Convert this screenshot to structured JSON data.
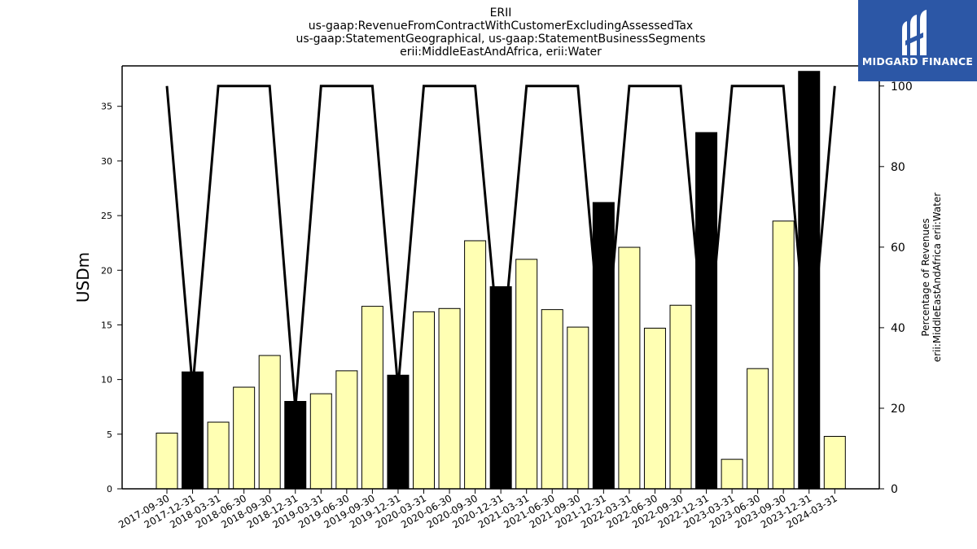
{
  "chart_data": {
    "type": "bar",
    "title_lines": [
      "ERII",
      "us-gaap:RevenueFromContractWithCustomerExcludingAssessedTax",
      "us-gaap:StatementGeographical, us-gaap:StatementBusinessSegments",
      "erii:MiddleEastAndAfrica, erii:Water"
    ],
    "ylabel": "USDm",
    "y2label_lines": [
      "Percentage of Revenues",
      "erii:MiddleEastAndAfrica erii:Water"
    ],
    "ylim": [
      0,
      38.7
    ],
    "y2lim": [
      0,
      105
    ],
    "yticks": [
      0,
      5,
      10,
      15,
      20,
      25,
      30,
      35
    ],
    "y2ticks": [
      0,
      20,
      40,
      60,
      80,
      100
    ],
    "categories": [
      "2017-09-30",
      "2017-12-31",
      "2018-03-31",
      "2018-06-30",
      "2018-09-30",
      "2018-12-31",
      "2019-03-31",
      "2019-06-30",
      "2019-09-30",
      "2019-12-31",
      "2020-03-31",
      "2020-06-30",
      "2020-09-30",
      "2020-12-31",
      "2021-03-31",
      "2021-06-30",
      "2021-09-30",
      "2021-12-31",
      "2022-03-31",
      "2022-06-30",
      "2022-09-30",
      "2022-12-31",
      "2023-03-31",
      "2023-06-30",
      "2023-09-30",
      "2023-12-31",
      "2024-03-31"
    ],
    "series": [
      {
        "type": "bar",
        "values": [
          5.1,
          10.7,
          6.1,
          9.3,
          12.2,
          8.0,
          8.7,
          10.8,
          16.7,
          10.4,
          16.2,
          16.5,
          22.7,
          18.5,
          21.0,
          16.4,
          14.8,
          26.2,
          22.1,
          14.7,
          16.8,
          32.6,
          2.7,
          11.0,
          24.5,
          38.2,
          4.8
        ],
        "colors": [
          "#ffffb3",
          "#000000",
          "#ffffb3",
          "#ffffb3",
          "#ffffb3",
          "#000000",
          "#ffffb3",
          "#ffffb3",
          "#ffffb3",
          "#000000",
          "#ffffb3",
          "#ffffb3",
          "#ffffb3",
          "#000000",
          "#ffffb3",
          "#ffffb3",
          "#ffffb3",
          "#000000",
          "#ffffb3",
          "#ffffb3",
          "#ffffb3",
          "#000000",
          "#ffffb3",
          "#ffffb3",
          "#ffffb3",
          "#000000",
          "#ffffb3"
        ]
      },
      {
        "type": "line",
        "axis": "right",
        "values": [
          100,
          25,
          100,
          100,
          100,
          20,
          100,
          100,
          100,
          25,
          100,
          100,
          100,
          30,
          100,
          100,
          100,
          28,
          100,
          100,
          100,
          30,
          100,
          100,
          100,
          28,
          100
        ],
        "color": "#000000"
      }
    ],
    "grid": false
  },
  "logo": {
    "text": "MIDGARD FINANCE",
    "background": "#2c57a6"
  }
}
